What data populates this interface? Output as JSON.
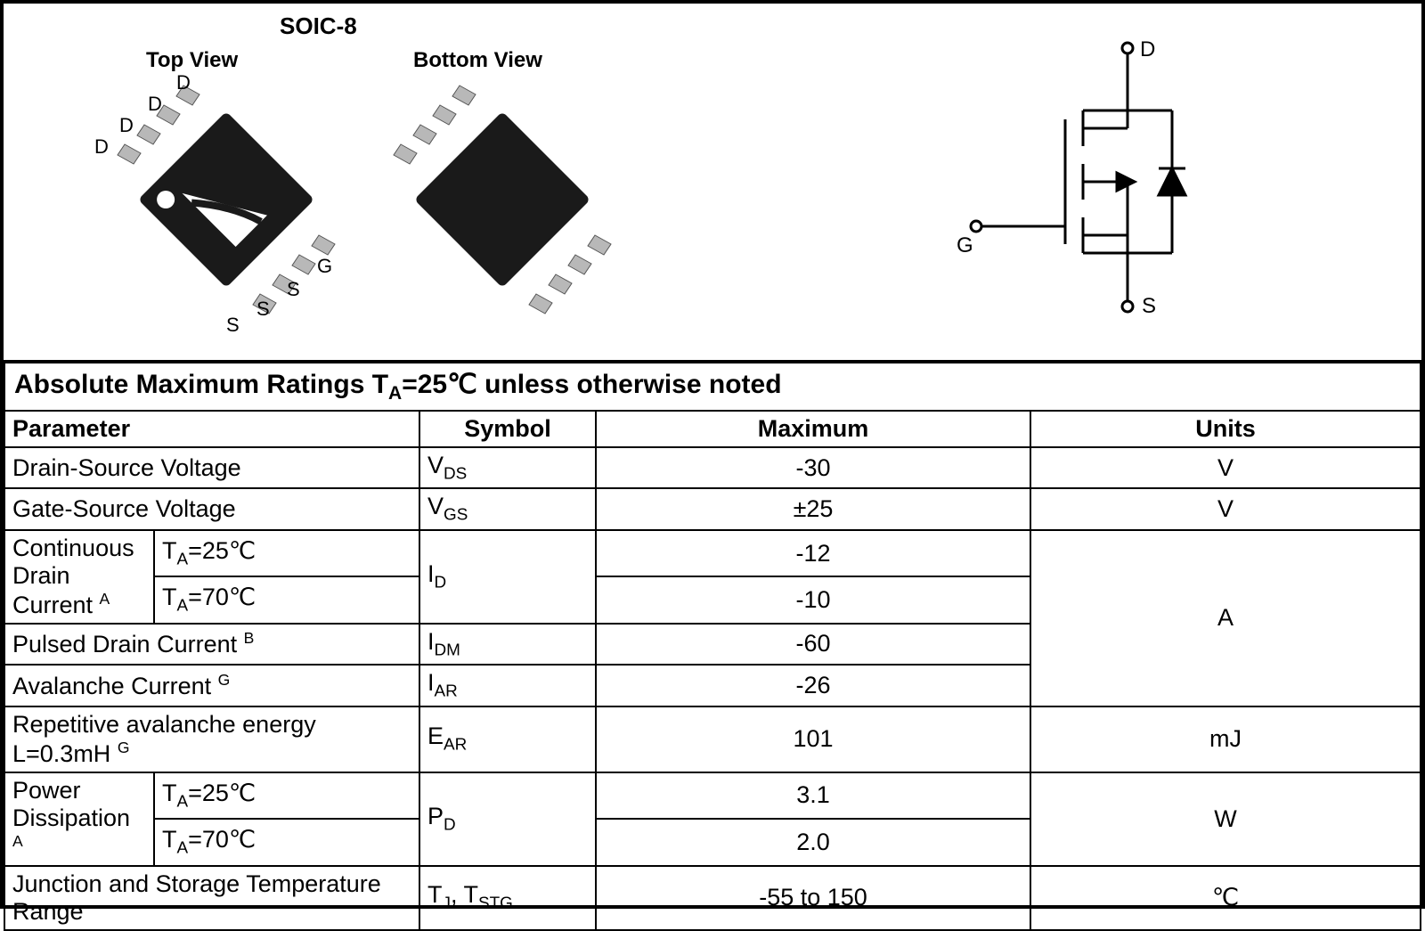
{
  "package": {
    "title": "SOIC-8",
    "top_view_label": "Top View",
    "bottom_view_label": "Bottom View",
    "pin_labels_top": [
      "D",
      "D",
      "D",
      "D",
      "S",
      "S",
      "S",
      "G"
    ],
    "chip_body_color": "#1a1a1a",
    "lead_color": "#b8b8b8",
    "dot_marker_color": "#ffffff"
  },
  "schematic": {
    "terminals": {
      "drain": "D",
      "gate": "G",
      "source": "S"
    },
    "line_color": "#000000",
    "line_width": 3
  },
  "table": {
    "title_html": "Absolute Maximum Ratings  T<sub>A</sub>=25℃ unless otherwise noted",
    "columns": [
      "Parameter",
      "Symbol",
      "Maximum",
      "Units"
    ],
    "rows": [
      {
        "param_html": "Drain-Source Voltage",
        "symbol_html": "V<sub>DS</sub>",
        "max": "-30",
        "unit": "V"
      },
      {
        "param_html": "Gate-Source Voltage",
        "symbol_html": "V<sub>GS</sub>",
        "max": "±25",
        "unit": "V"
      },
      {
        "param_html": "Continuous Drain Current <sup>A</sup>",
        "cond_html": "T<sub>A</sub>=25℃",
        "symbol_html": "I<sub>D</sub>",
        "max": "-12",
        "unit_rowspan_start": "A",
        "unit_rowspan": 4
      },
      {
        "cond_html": "T<sub>A</sub>=70℃",
        "max": "-10"
      },
      {
        "param_html": "Pulsed Drain Current <sup>B</sup>",
        "symbol_html": "I<sub>DM</sub>",
        "max": "-60"
      },
      {
        "param_html": "Avalanche Current <sup>G</sup>",
        "symbol_html": "I<sub>AR</sub>",
        "max": "-26"
      },
      {
        "param_html": "Repetitive avalanche energy L=0.3mH <sup>G</sup>",
        "symbol_html": "E<sub>AR</sub>",
        "max": "101",
        "unit": "mJ"
      },
      {
        "param_html": "Power Dissipation <sup>A</sup>",
        "cond_html": "T<sub>A</sub>=25℃",
        "symbol_html": "P<sub>D</sub>",
        "max": "3.1",
        "unit_rowspan_start": "W",
        "unit_rowspan": 2
      },
      {
        "cond_html": "T<sub>A</sub>=70℃",
        "max": "2.0"
      },
      {
        "param_html": "Junction and Storage Temperature Range",
        "symbol_html": "T<sub>J</sub>, T<sub>STG</sub>",
        "max": "-55 to 150",
        "unit": "℃"
      }
    ],
    "font_size_pt": 20,
    "border_color": "#000000"
  }
}
